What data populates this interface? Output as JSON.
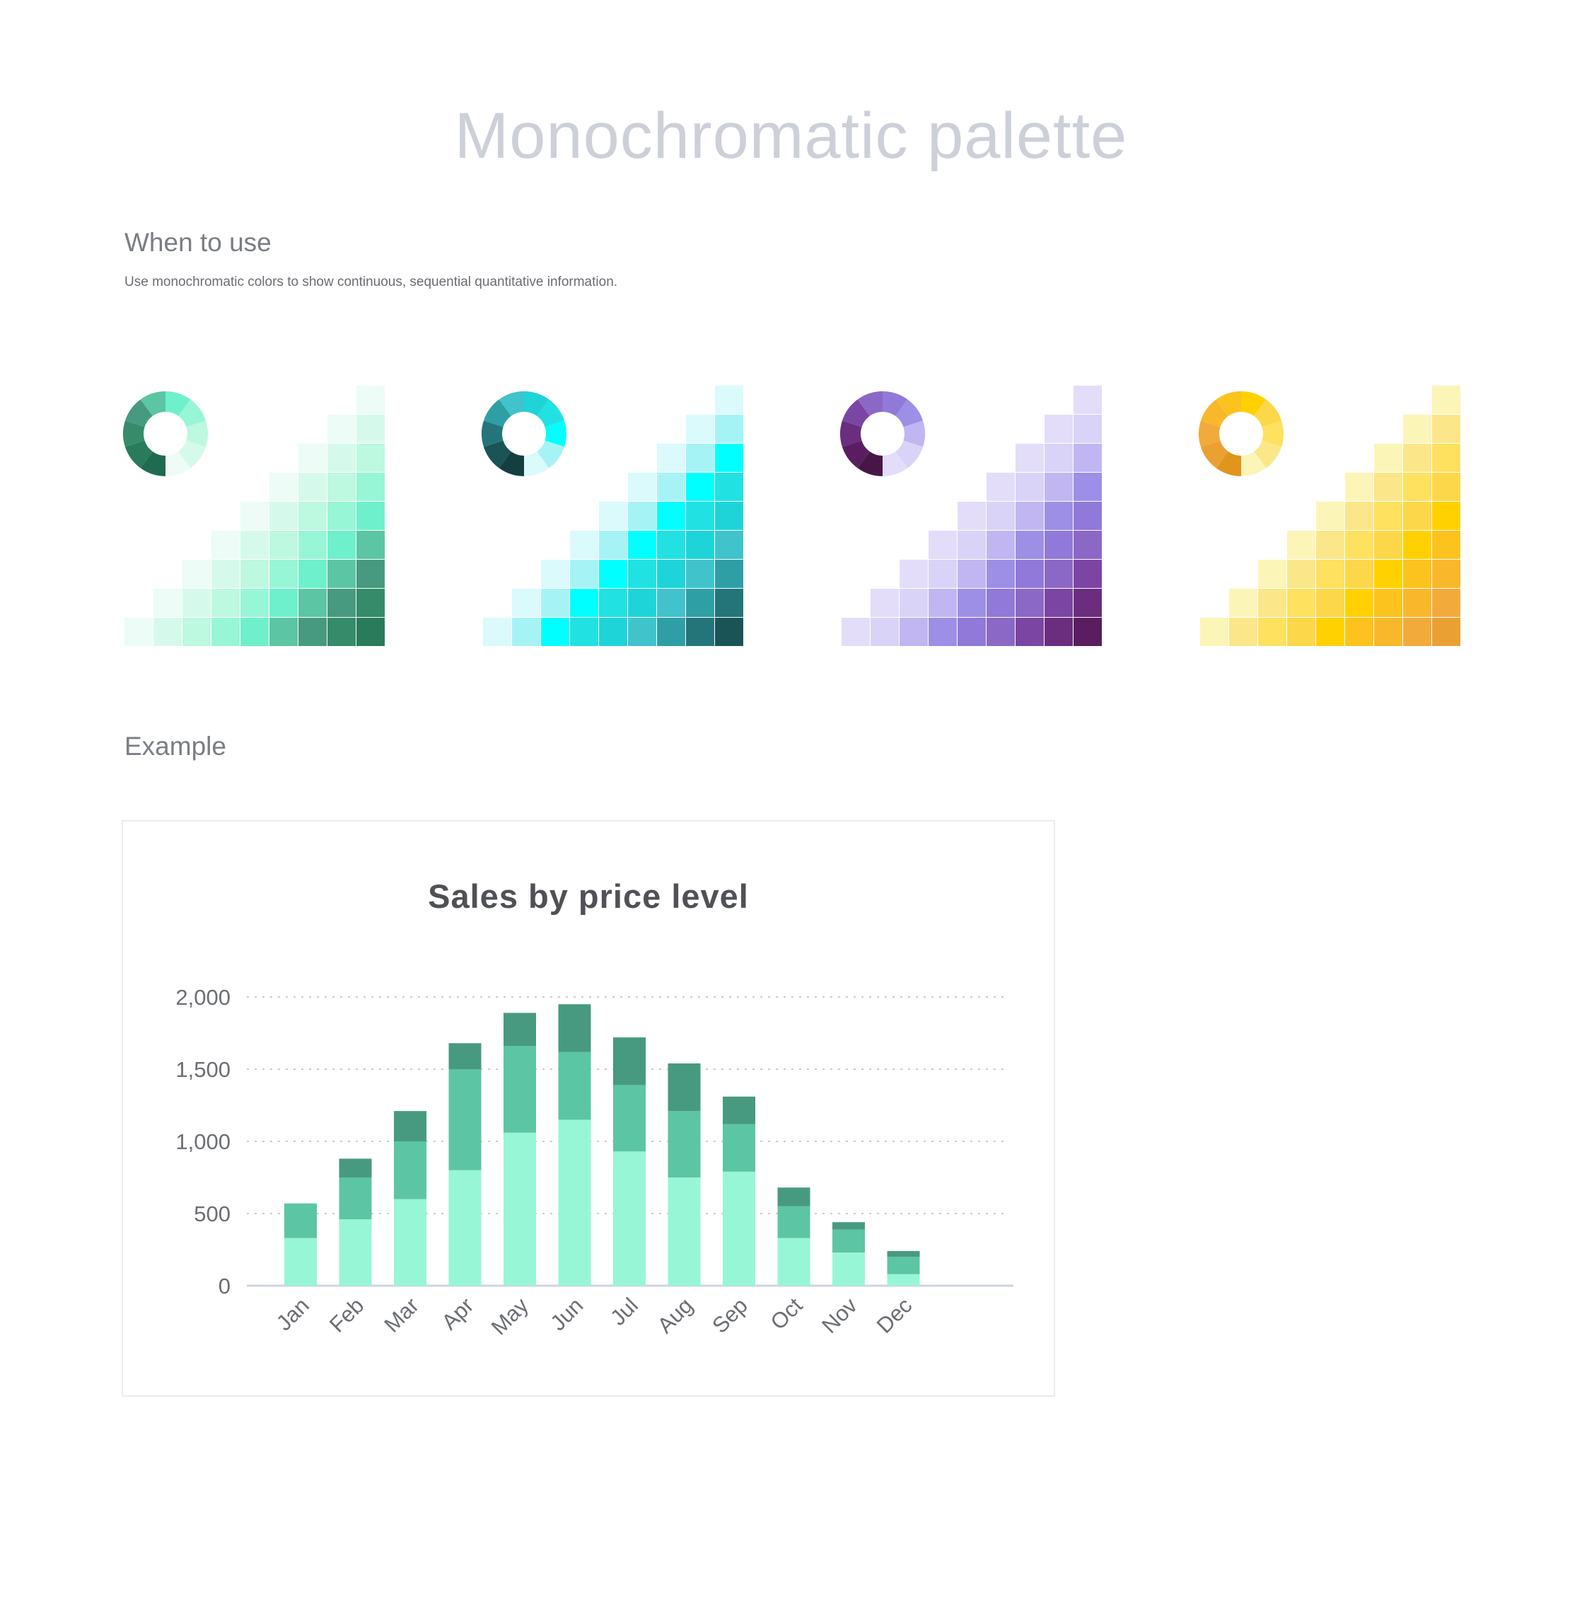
{
  "page": {
    "title": "Monochromatic palette",
    "when_heading": "When to use",
    "when_text": "Use monochromatic colors to show continuous, sequential quantitative information.",
    "example_heading": "Example"
  },
  "palettes": [
    {
      "name": "green",
      "colors": [
        "#edfcf6",
        "#d5faeb",
        "#bdf8e0",
        "#97f6d6",
        "#6ff0cc",
        "#5cc5a4",
        "#479a80",
        "#358b6a",
        "#2a7a5c",
        "#1f6b52"
      ]
    },
    {
      "name": "teal",
      "colors": [
        "#dafafc",
        "#a6f3f6",
        "#00ffff",
        "#22e1e2",
        "#1ed4d9",
        "#40c3cb",
        "#2f9fa6",
        "#23757a",
        "#1a5457",
        "#143e40"
      ]
    },
    {
      "name": "purple",
      "colors": [
        "#e3ddfa",
        "#d9d3f7",
        "#c1b6f2",
        "#9d8fe6",
        "#9079d8",
        "#8b68c6",
        "#7b45a4",
        "#6b2d7e",
        "#5a1d60",
        "#481547"
      ]
    },
    {
      "name": "yellow",
      "colors": [
        "#fcf5b8",
        "#fbe78a",
        "#fde15f",
        "#fdd74a",
        "#ffd100",
        "#fcc21e",
        "#f9b82c",
        "#f2ab3b",
        "#eba034",
        "#e0951c"
      ]
    }
  ],
  "chart_data": {
    "type": "bar",
    "title": "Sales by price level",
    "stacked": true,
    "categories": [
      "Jan",
      "Feb",
      "Mar",
      "Apr",
      "May",
      "Jun",
      "Jul",
      "Aug",
      "Sep",
      "Oct",
      "Nov",
      "Dec"
    ],
    "series": [
      {
        "values": [
          330,
          460,
          600,
          800,
          1060,
          1150,
          930,
          750,
          790,
          330,
          230,
          80
        ],
        "color": "#97f6d6"
      },
      {
        "values": [
          240,
          290,
          400,
          700,
          600,
          470,
          460,
          460,
          330,
          220,
          160,
          120
        ],
        "color": "#5cc5a4"
      },
      {
        "values": [
          0,
          130,
          210,
          180,
          230,
          330,
          330,
          330,
          190,
          130,
          50,
          40
        ],
        "color": "#479a80"
      }
    ],
    "yticks": [
      0,
      500,
      1000,
      1500,
      2000
    ],
    "ytick_labels": [
      "0",
      "500",
      "1,000",
      "1,500",
      "2,000"
    ],
    "ylim": [
      0,
      2000
    ],
    "grid": true,
    "legend": "none"
  }
}
